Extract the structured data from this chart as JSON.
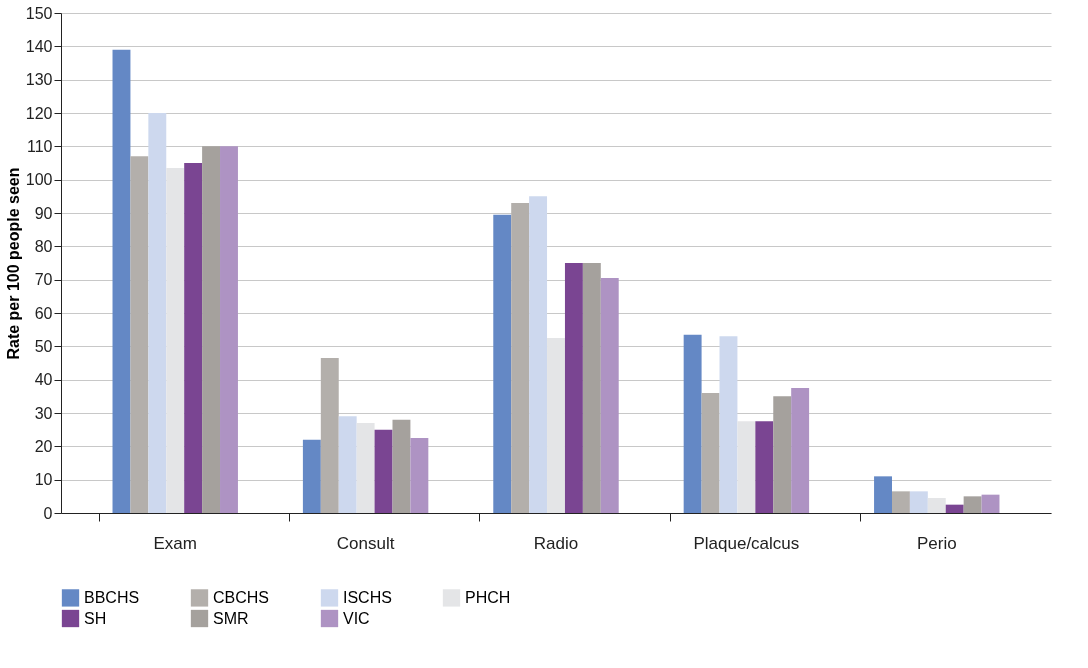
{
  "chart_data": {
    "type": "bar",
    "ylabel": "Rate per 100 people seen",
    "categories": [
      "Exam",
      "Consult",
      "Radio",
      "Plaque/calcus",
      "Perio"
    ],
    "ylim": [
      0,
      150
    ],
    "yticks": [
      0,
      10,
      20,
      30,
      40,
      50,
      60,
      70,
      80,
      90,
      100,
      110,
      120,
      130,
      140,
      150
    ],
    "grid": "y",
    "legend": "bottom left",
    "series": [
      {
        "name": "BBCHS",
        "color": "#6488c5",
        "values": [
          139,
          22,
          89.5,
          53.5,
          11
        ]
      },
      {
        "name": "CBCHS",
        "color": "#b3afab",
        "values": [
          107,
          46.5,
          93,
          36,
          6.5
        ]
      },
      {
        "name": "ISCHS",
        "color": "#cdd8ee",
        "values": [
          120,
          29,
          95,
          53,
          6.5
        ]
      },
      {
        "name": "PHCH",
        "color": "#e4e5e7",
        "values": [
          103.5,
          27,
          52.5,
          27.5,
          4.5
        ]
      },
      {
        "name": "SH",
        "color": "#7a4592",
        "values": [
          105,
          25,
          75,
          27.5,
          2.5
        ]
      },
      {
        "name": "SMR",
        "color": "#a5a19d",
        "values": [
          110,
          28,
          75,
          35,
          5
        ]
      },
      {
        "name": "VIC",
        "color": "#ae93c3",
        "values": [
          110,
          22.5,
          70.5,
          37.5,
          5.5
        ]
      }
    ]
  }
}
